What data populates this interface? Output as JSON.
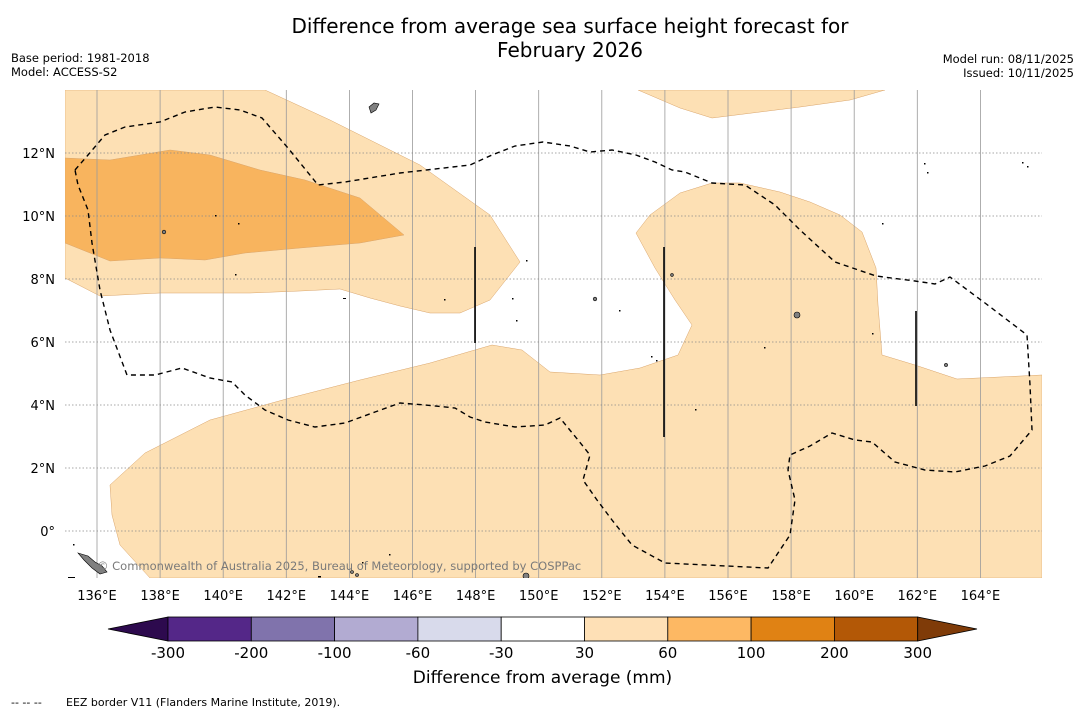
{
  "header": {
    "title_line1": "Difference from average sea surface height forecast for",
    "title_line2": "February 2026",
    "base_period": "Base period: 1981-2018",
    "model": "Model: ACCESS-S2",
    "model_run": "Model run: 08/11/2025",
    "issued": "Issued: 10/11/2025"
  },
  "map": {
    "lon_ticks": [
      "136°E",
      "138°E",
      "140°E",
      "142°E",
      "144°E",
      "146°E",
      "148°E",
      "150°E",
      "152°E",
      "154°E",
      "156°E",
      "158°E",
      "160°E",
      "162°E",
      "164°E"
    ],
    "lat_ticks": [
      "12°N",
      "10°N",
      "8°N",
      "6°N",
      "4°N",
      "2°N",
      "0°"
    ],
    "credit": "© Commonwealth of Australia 2025, Bureau of Meteorology, supported by COSPPac",
    "colors": {
      "anomaly_30_60": "#fde0b4",
      "anomaly_60_100": "#f8b45e",
      "land": "#808080"
    }
  },
  "colorbar": {
    "title": "Difference from average (mm)",
    "labels": [
      "-300",
      "-200",
      "-100",
      "-60",
      "-30",
      "30",
      "60",
      "100",
      "200",
      "300"
    ],
    "colors": [
      "#2d0a4e",
      "#542788",
      "#8073ac",
      "#b2abd2",
      "#d8daeb",
      "#ffffff",
      "#fee0b6",
      "#fdb863",
      "#e08214",
      "#b35806",
      "#7f3b08"
    ]
  },
  "footer": {
    "legend_symbol": "-- -- --",
    "legend_text": "EEZ border V11 (Flanders Marine Institute, 2019)."
  }
}
